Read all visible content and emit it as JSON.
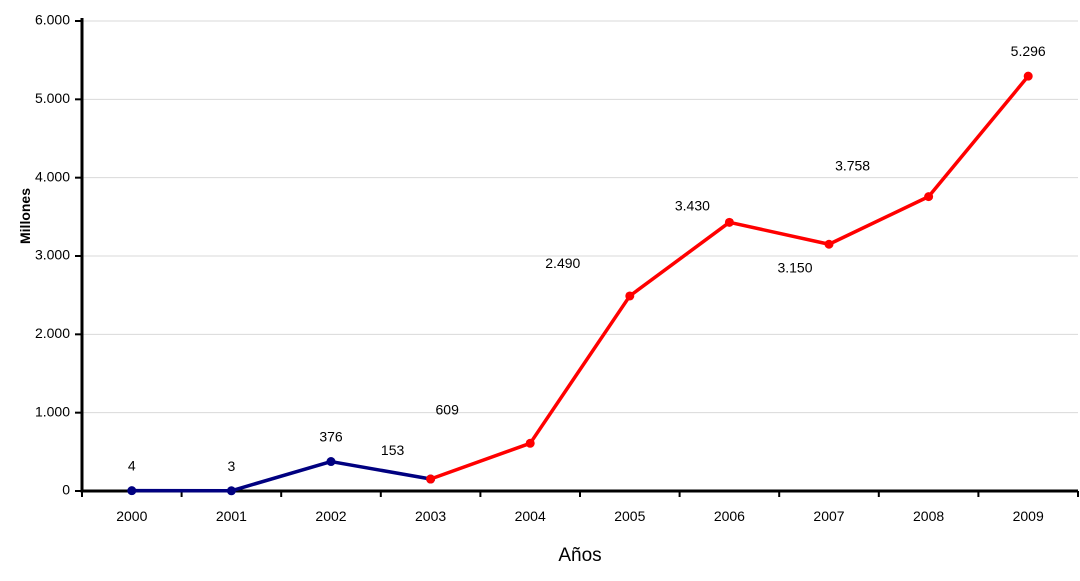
{
  "chart_data": {
    "type": "line",
    "title": "",
    "xlabel": "Años",
    "ylabel": "Millones",
    "categories": [
      "2000",
      "2001",
      "2002",
      "2003",
      "2004",
      "2005",
      "2006",
      "2007",
      "2008",
      "2009"
    ],
    "ylim": [
      0,
      6000
    ],
    "yticks": [
      "0",
      "1.000",
      "2.000",
      "3.000",
      "4.000",
      "5.000",
      "6.000"
    ],
    "grid": true,
    "legend": "none",
    "series": [
      {
        "color": "#000080",
        "x": [
          "2000",
          "2001",
          "2002",
          "2003"
        ],
        "values": [
          4,
          3,
          376,
          153
        ],
        "labels": [
          "4",
          "3",
          "376",
          "153"
        ]
      },
      {
        "color": "#ff0000",
        "x": [
          "2003",
          "2004",
          "2005",
          "2006",
          "2007",
          "2008",
          "2009"
        ],
        "values": [
          153,
          609,
          2490,
          3430,
          3150,
          3758,
          5296
        ],
        "labels": [
          "",
          "609",
          "2.490",
          "3.430",
          "3.150",
          "3.758",
          "5.296"
        ]
      }
    ]
  }
}
